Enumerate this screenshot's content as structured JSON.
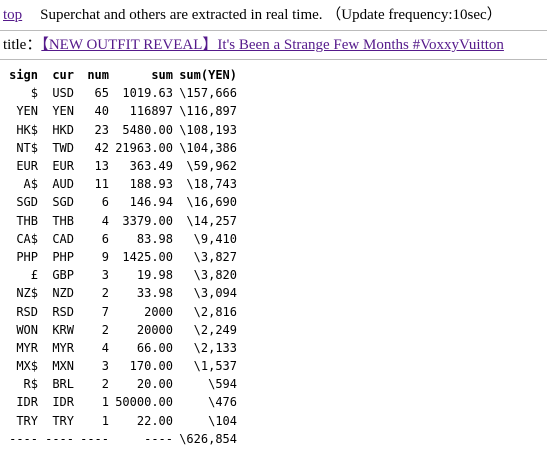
{
  "header": {
    "link": "top",
    "text": "Superchat and others are extracted in real time. （Update frequency:10sec）"
  },
  "title": {
    "label": "title：",
    "link": "【NEW OUTFIT REVEAL】It's Been a Strange Few Months #VoxxyVuitton"
  },
  "table": {
    "columns": [
      "sign",
      "cur",
      "num",
      "sum",
      "sum(YEN)"
    ],
    "rows": [
      [
        "$",
        "USD",
        "65",
        "1019.63",
        "\\157,666"
      ],
      [
        "YEN",
        "YEN",
        "40",
        "116897",
        "\\116,897"
      ],
      [
        "HK$",
        "HKD",
        "23",
        "5480.00",
        "\\108,193"
      ],
      [
        "NT$",
        "TWD",
        "42",
        "21963.00",
        "\\104,386"
      ],
      [
        "EUR",
        "EUR",
        "13",
        "363.49",
        "\\59,962"
      ],
      [
        "A$",
        "AUD",
        "11",
        "188.93",
        "\\18,743"
      ],
      [
        "SGD",
        "SGD",
        "6",
        "146.94",
        "\\16,690"
      ],
      [
        "THB",
        "THB",
        "4",
        "3379.00",
        "\\14,257"
      ],
      [
        "CA$",
        "CAD",
        "6",
        "83.98",
        "\\9,410"
      ],
      [
        "PHP",
        "PHP",
        "9",
        "1425.00",
        "\\3,827"
      ],
      [
        "£",
        "GBP",
        "3",
        "19.98",
        "\\3,820"
      ],
      [
        "NZ$",
        "NZD",
        "2",
        "33.98",
        "\\3,094"
      ],
      [
        "RSD",
        "RSD",
        "7",
        "2000",
        "\\2,816"
      ],
      [
        "WON",
        "KRW",
        "2",
        "20000",
        "\\2,249"
      ],
      [
        "MYR",
        "MYR",
        "4",
        "66.00",
        "\\2,133"
      ],
      [
        "MX$",
        "MXN",
        "3",
        "170.00",
        "\\1,537"
      ],
      [
        "R$",
        "BRL",
        "2",
        "20.00",
        "\\594"
      ],
      [
        "IDR",
        "IDR",
        "1",
        "50000.00",
        "\\476"
      ],
      [
        "TRY",
        "TRY",
        "1",
        "22.00",
        "\\104"
      ]
    ],
    "footer": [
      "----",
      "----",
      "----",
      "----",
      "\\626,854"
    ]
  }
}
